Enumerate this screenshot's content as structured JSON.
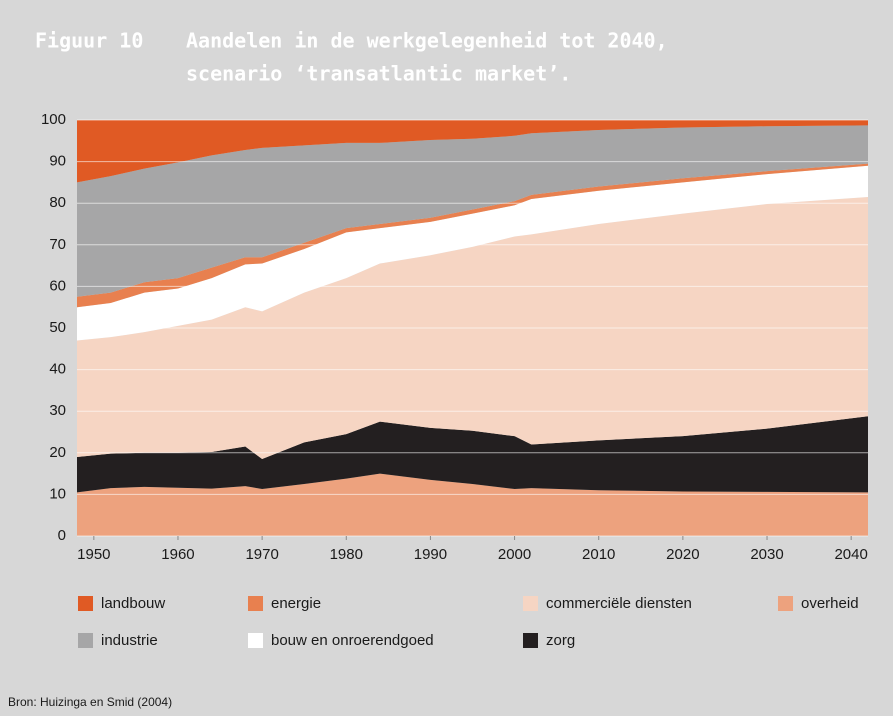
{
  "chart_data": {
    "type": "stacked_area",
    "figure_label": "Figuur 10",
    "title": [
      "Aandelen in de werkgelegenheid tot 2040,",
      "scenario ‘transatlantic market’."
    ],
    "source": "Bron: Huizinga en Smid (2004)",
    "x": [
      1948,
      1952,
      1956,
      1960,
      1964,
      1968,
      1970,
      1975,
      1980,
      1984,
      1990,
      1995,
      2000,
      2002,
      2010,
      2020,
      2030,
      2042
    ],
    "xlim": [
      1948,
      2042
    ],
    "xticks": [
      1950,
      1960,
      1970,
      1980,
      1990,
      2000,
      2010,
      2020,
      2030,
      2040
    ],
    "ylim": [
      0,
      100
    ],
    "yticks": [
      0,
      10,
      20,
      30,
      40,
      50,
      60,
      70,
      80,
      90,
      100
    ],
    "grid": true,
    "series": [
      {
        "name": "overheid",
        "color": "#eda27e",
        "values": [
          10.5,
          11.5,
          11.8,
          11.6,
          11.4,
          12,
          11.3,
          12.5,
          13.8,
          15,
          13.5,
          12.5,
          11.3,
          11.5,
          11,
          10.7,
          10.6,
          10.5
        ]
      },
      {
        "name": "zorg",
        "color": "#231f20",
        "values": [
          8.5,
          8.3,
          8.2,
          8.4,
          8.8,
          9.5,
          7.2,
          10,
          10.7,
          12.5,
          12.5,
          12.8,
          12.7,
          10.5,
          12,
          13.3,
          15.2,
          18.3
        ]
      },
      {
        "name": "commerciële diensten",
        "color": "#f6d5c3",
        "values": [
          28,
          28,
          29,
          30.5,
          31.8,
          33.5,
          35.5,
          36,
          37.5,
          38,
          41.5,
          44.2,
          48,
          50.5,
          52,
          53.5,
          54,
          52.7
        ]
      },
      {
        "name": "bouw en onroerendgoed",
        "color": "#ffffff",
        "values": [
          8,
          8.2,
          9.5,
          9,
          10,
          10.3,
          11.5,
          10.5,
          11,
          8.5,
          8,
          8,
          7.5,
          8.5,
          8,
          7.5,
          7.2,
          7.5
        ]
      },
      {
        "name": "energie",
        "color": "#e8804f",
        "values": [
          2.5,
          2.5,
          2.5,
          2.5,
          2.5,
          1.7,
          1.5,
          1.5,
          1,
          1,
          1,
          1,
          1,
          1,
          1,
          1,
          0.7,
          0.5
        ]
      },
      {
        "name": "industrie",
        "color": "#a6a6a7",
        "values": [
          27.5,
          28,
          27.3,
          27.8,
          27,
          25.8,
          26.3,
          23.4,
          20.5,
          19.5,
          18.7,
          17,
          15.7,
          14.8,
          13.6,
          12.2,
          10.8,
          9.2
        ]
      },
      {
        "name": "landbouw",
        "color": "#e05a24",
        "values": [
          15,
          13.5,
          11.7,
          10.2,
          8.5,
          7.2,
          6.7,
          6.1,
          5.5,
          5.5,
          4.8,
          4.5,
          3.8,
          3.2,
          2.4,
          1.8,
          1.5,
          1.3
        ]
      }
    ]
  }
}
